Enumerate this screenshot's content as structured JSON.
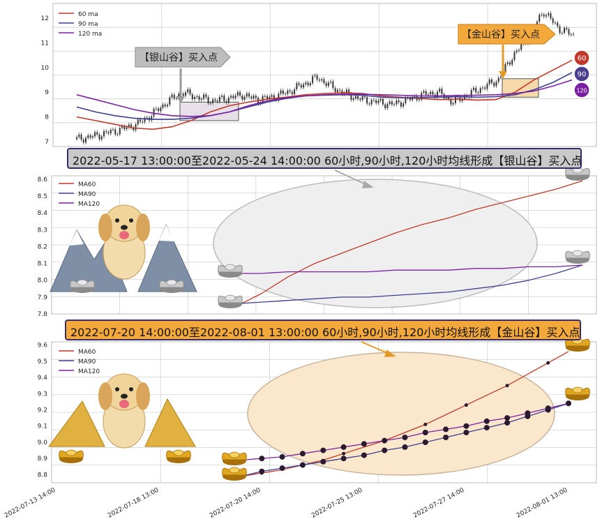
{
  "panels": {
    "price": {
      "legend": [
        "60 ma",
        "90 ma",
        "120 ma"
      ],
      "y_ticks": [
        "7",
        "8",
        "9",
        "10",
        "11",
        "12"
      ],
      "silver_arrow_label": "【银山谷】买入点",
      "gold_arrow_label": "【金山谷】买入点",
      "badges": [
        "60",
        "90",
        "120"
      ]
    },
    "silver": {
      "legend": [
        "MA60",
        "MA90",
        "MA120"
      ],
      "y_ticks": [
        "7.8",
        "7.9",
        "8.0",
        "8.1",
        "8.2",
        "8.3",
        "8.4",
        "8.5",
        "8.6"
      ],
      "banner": "2022-05-17 13:00:00至2022-05-24 14:00:00 60小时,90小时,120小时均线形成【银山谷】买入点"
    },
    "gold": {
      "legend": [
        "MA60",
        "MA90",
        "MA120"
      ],
      "y_ticks": [
        "8.8",
        "8.9",
        "9.0",
        "9.1",
        "9.2",
        "9.3",
        "9.4",
        "9.5",
        "9.6"
      ],
      "banner": "2022-07-20 14:00:00至2022-08-01 13:00:00 60小时,90小时,120小时均线形成【金山谷】买入点",
      "x_ticks": [
        "2022-07-13 14:00",
        "2022-07-18 13:00",
        "2022-07-20 14:00",
        "2022-07-25 13:00",
        "2022-07-27 14:00",
        "2022-08-01 13:00"
      ]
    }
  },
  "colors": {
    "ma60": "#c0392b",
    "ma90": "#3b3f8f",
    "ma120": "#7b1fa2",
    "candle": "#333333",
    "silver_zone": "#e8e0e8",
    "gold_zone": "#f5d9a8",
    "grid": "#d0d0d0"
  },
  "chart_data": [
    {
      "type": "line",
      "title": "",
      "ylim": [
        6.8,
        12.6
      ],
      "series": [
        {
          "name": "60 ma",
          "values": [
            8.0,
            7.85,
            7.7,
            7.55,
            7.5,
            7.6,
            7.85,
            8.2,
            8.45,
            8.6,
            8.72,
            8.8,
            8.9,
            8.95,
            8.98,
            8.95,
            8.85,
            8.8,
            8.75,
            8.7,
            8.72,
            8.68,
            8.7,
            9.0,
            9.5,
            9.9,
            10.3
          ]
        },
        {
          "name": "90 ma",
          "values": [
            8.4,
            8.2,
            8.05,
            7.95,
            7.9,
            7.9,
            7.95,
            8.05,
            8.2,
            8.4,
            8.6,
            8.75,
            8.85,
            8.88,
            8.9,
            8.88,
            8.8,
            8.78,
            8.78,
            8.8,
            8.82,
            8.8,
            8.82,
            8.9,
            9.1,
            9.4,
            9.8
          ]
        },
        {
          "name": "120 ma",
          "values": [
            8.9,
            8.7,
            8.5,
            8.3,
            8.15,
            8.05,
            8.02,
            8.05,
            8.2,
            8.45,
            8.65,
            8.78,
            8.85,
            8.9,
            8.92,
            8.92,
            8.9,
            8.88,
            8.85,
            8.85,
            8.87,
            8.88,
            8.9,
            8.95,
            9.05,
            9.25,
            9.5
          ]
        },
        {
          "name": "price",
          "values": [
            7.1,
            7.2,
            7.35,
            7.5,
            7.7,
            8.1,
            8.6,
            9.0,
            8.8,
            8.65,
            8.75,
            8.9,
            8.7,
            8.8,
            9.0,
            9.3,
            9.6,
            9.2,
            8.9,
            8.7,
            8.6,
            8.5,
            8.7,
            8.9,
            9.0,
            8.6,
            8.9,
            9.2,
            9.5,
            10.5,
            11.2,
            12.3,
            11.6,
            11.3
          ]
        }
      ]
    },
    {
      "type": "line",
      "title": "",
      "ylim": [
        7.8,
        8.62
      ],
      "series": [
        {
          "name": "MA60",
          "values": [
            7.84,
            7.92,
            8.02,
            8.1,
            8.16,
            8.22,
            8.28,
            8.33,
            8.37,
            8.42,
            8.46,
            8.5,
            8.54,
            8.59
          ]
        },
        {
          "name": "MA90",
          "values": [
            7.86,
            7.87,
            7.88,
            7.89,
            7.9,
            7.9,
            7.91,
            7.92,
            7.93,
            7.95,
            7.97,
            8.0,
            8.04,
            8.09
          ]
        },
        {
          "name": "MA120",
          "values": [
            8.04,
            8.04,
            8.05,
            8.05,
            8.05,
            8.05,
            8.06,
            8.06,
            8.06,
            8.07,
            8.07,
            8.08,
            8.08,
            8.09
          ]
        }
      ]
    },
    {
      "type": "line",
      "title": "",
      "ylim": [
        8.75,
        9.62
      ],
      "series": [
        {
          "name": "MA60",
          "values": [
            8.79,
            8.81,
            8.83,
            8.86,
            8.89,
            8.93,
            8.97,
            9.01,
            9.06,
            9.11,
            9.17,
            9.23,
            9.29,
            9.35,
            9.42,
            9.49,
            9.56
          ]
        },
        {
          "name": "MA90",
          "values": [
            8.79,
            8.82,
            8.84,
            8.86,
            8.88,
            8.9,
            8.92,
            8.95,
            8.97,
            9.0,
            9.03,
            9.06,
            9.09,
            9.12,
            9.16,
            9.2,
            9.24
          ]
        },
        {
          "name": "MA120",
          "values": [
            8.89,
            8.9,
            8.91,
            8.93,
            8.95,
            8.97,
            8.99,
            9.01,
            9.03,
            9.06,
            9.08,
            9.1,
            9.13,
            9.15,
            9.18,
            9.21,
            9.24
          ]
        }
      ]
    }
  ]
}
